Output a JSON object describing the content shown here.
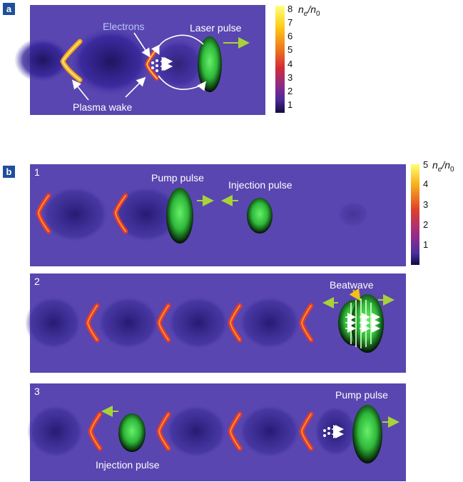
{
  "panel_a": {
    "badge": "a",
    "labels": {
      "electrons": "Electrons",
      "laser_pulse": "Laser pulse",
      "plasma_wake": "Plasma wake"
    },
    "colorbar": {
      "ticks": [
        "8",
        "7",
        "6",
        "5",
        "4",
        "3",
        "2",
        "1"
      ],
      "unit_num": "n",
      "unit_num_sub": "e",
      "unit_den": "n",
      "unit_den_sub": "0"
    }
  },
  "panel_b": {
    "badge": "b",
    "colorbar": {
      "ticks": [
        "5",
        "4",
        "3",
        "2",
        "1"
      ],
      "unit_num": "n",
      "unit_num_sub": "e",
      "unit_den": "n",
      "unit_den_sub": "0"
    },
    "frames": [
      {
        "number": "1",
        "labels": {
          "pump_pulse": "Pump pulse",
          "injection_pulse": "Injection pulse"
        }
      },
      {
        "number": "2",
        "labels": {
          "beatwave": "Beatwave"
        }
      },
      {
        "number": "3",
        "labels": {
          "pump_pulse": "Pump pulse",
          "injection_pulse": "Injection pulse"
        }
      }
    ]
  },
  "colors": {
    "plasma_bg": "#5a46b0",
    "cavity": "#241a6a",
    "wake_spike": "#e8402a",
    "pulse_green": "#3ed24a",
    "arrow_green": "#a8d23a"
  }
}
